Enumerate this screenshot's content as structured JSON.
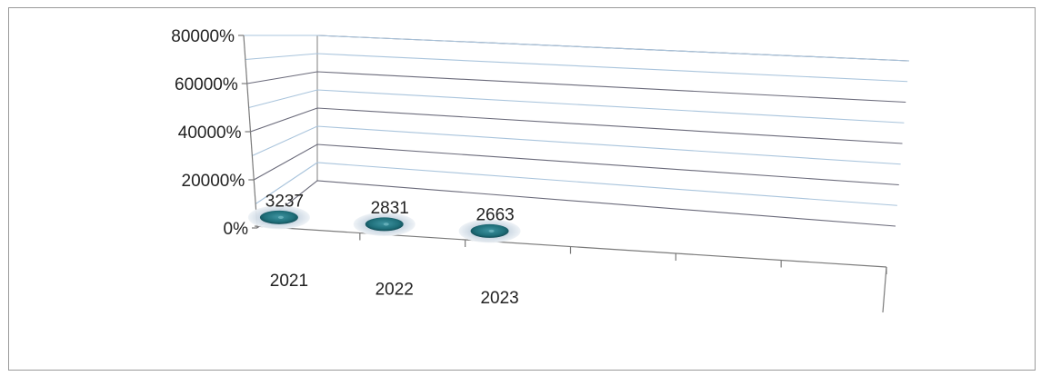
{
  "chart_data": {
    "type": "bar",
    "categories": [
      "2021",
      "2022",
      "2023"
    ],
    "values": [
      3237,
      2831,
      2663
    ],
    "value_labels": [
      "3237",
      "2831",
      "2663"
    ],
    "y_tick_labels": [
      "0%",
      "20000%",
      "40000%",
      "60000%",
      "80000%"
    ],
    "y_ticks": [
      0,
      200,
      400,
      600,
      800
    ],
    "ylim": [
      0,
      800
    ],
    "grid": true,
    "legend": "none",
    "title": "",
    "xlabel": "",
    "ylabel": "",
    "colors": {
      "marker": "#1f6f7a",
      "marker_halo": "#b9c8d6",
      "grid_blue": "#a9c4dc",
      "grid_dark": "#6a6a7a"
    }
  }
}
